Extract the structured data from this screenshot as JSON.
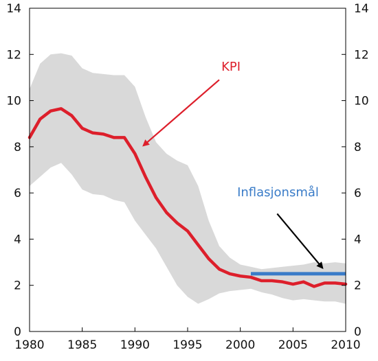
{
  "chart_data": {
    "type": "line",
    "title": "",
    "xlabel": "",
    "ylabel": "",
    "xlim": [
      1980,
      2010
    ],
    "ylim": [
      0,
      14
    ],
    "x_ticks": [
      "1980",
      "1985",
      "1990",
      "1995",
      "2000",
      "2005",
      "2010"
    ],
    "y_ticks": [
      "0",
      "2",
      "4",
      "6",
      "8",
      "10",
      "12",
      "14"
    ],
    "grid": false,
    "legend": "none",
    "band": {
      "color": "#d9d9d9",
      "x": [
        1980,
        1981,
        1982,
        1983,
        1984,
        1985,
        1986,
        1987,
        1988,
        1989,
        1990,
        1991,
        1992,
        1993,
        1994,
        1995,
        1996,
        1997,
        1998,
        1999,
        2000,
        2001,
        2002,
        2003,
        2004,
        2005,
        2006,
        2007,
        2008,
        2009,
        2010
      ],
      "upper": [
        10.5,
        11.6,
        12.0,
        12.05,
        11.95,
        11.4,
        11.2,
        11.15,
        11.1,
        11.1,
        10.6,
        9.3,
        8.2,
        7.7,
        7.4,
        7.2,
        6.3,
        4.8,
        3.7,
        3.2,
        2.9,
        2.8,
        2.7,
        2.75,
        2.8,
        2.85,
        2.9,
        3.0,
        2.95,
        3.0,
        2.95
      ],
      "lower": [
        6.3,
        6.7,
        7.1,
        7.3,
        6.8,
        6.15,
        5.95,
        5.9,
        5.7,
        5.6,
        4.8,
        4.2,
        3.6,
        2.8,
        2.0,
        1.5,
        1.2,
        1.4,
        1.65,
        1.75,
        1.8,
        1.85,
        1.7,
        1.6,
        1.45,
        1.35,
        1.4,
        1.35,
        1.3,
        1.3,
        1.2
      ]
    },
    "series": [
      {
        "name": "KPI",
        "color": "#dd1f2b",
        "x": [
          1980,
          1981,
          1982,
          1983,
          1984,
          1985,
          1986,
          1987,
          1988,
          1989,
          1990,
          1991,
          1992,
          1993,
          1994,
          1995,
          1996,
          1997,
          1998,
          1999,
          2000,
          2001,
          2002,
          2003,
          2004,
          2005,
          2006,
          2007,
          2008,
          2009,
          2010
        ],
        "values": [
          8.4,
          9.2,
          9.55,
          9.65,
          9.35,
          8.8,
          8.6,
          8.55,
          8.4,
          8.4,
          7.7,
          6.7,
          5.8,
          5.15,
          4.7,
          4.35,
          3.75,
          3.15,
          2.7,
          2.5,
          2.4,
          2.35,
          2.2,
          2.2,
          2.15,
          2.05,
          2.15,
          1.95,
          2.1,
          2.1,
          2.05
        ]
      },
      {
        "name": "Inflasjonsmål",
        "color": "#3a7cc8",
        "x": [
          2001,
          2010
        ],
        "values": [
          2.5,
          2.5
        ]
      }
    ],
    "annotations": [
      {
        "text": "KPI",
        "color": "#dd1f2b",
        "text_x": 1998.2,
        "text_y": 11.3,
        "arrow_from": [
          1998.0,
          10.9
        ],
        "arrow_to": [
          1990.8,
          8.05
        ]
      },
      {
        "text": "Inflasjonsmål",
        "color": "#3a7cc8",
        "text_x": 1999.7,
        "text_y": 5.85,
        "arrow_from": [
          2003.5,
          5.1
        ],
        "arrow_to": [
          2007.8,
          2.75
        ]
      }
    ]
  }
}
